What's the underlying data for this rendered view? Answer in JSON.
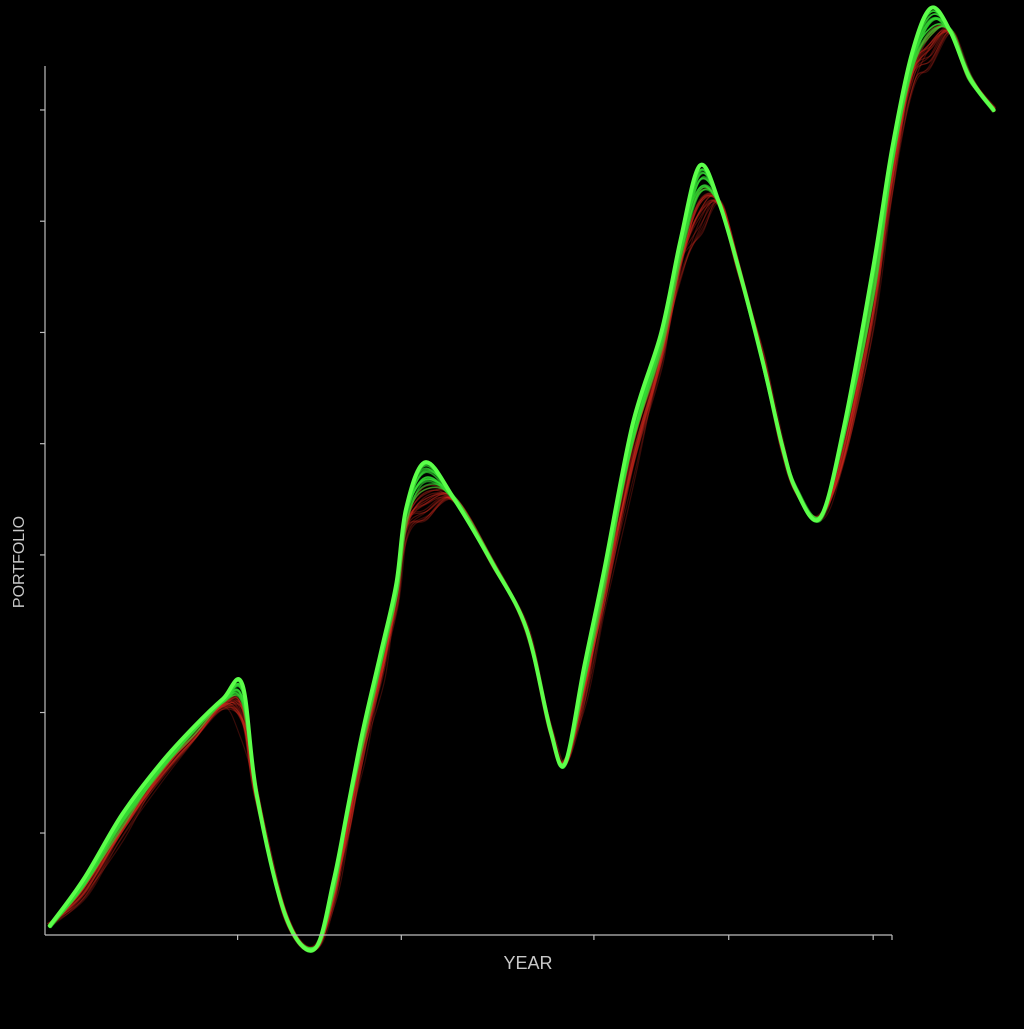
{
  "chart_data": {
    "type": "line",
    "title": "",
    "xlabel": "YEAR",
    "ylabel": "PORTFOLIO",
    "grid": false,
    "legend": "none",
    "xlim": [
      0,
      100
    ],
    "ylim": [
      0,
      100
    ],
    "x_ticks": [
      20,
      37,
      57,
      71,
      86
    ],
    "y_ticks": [
      11,
      24,
      41,
      53,
      65,
      77,
      89
    ],
    "band_count": 36,
    "series": [
      {
        "x": [
          0.5,
          4,
          8,
          12,
          15.5,
          18.5,
          20.5,
          22,
          25,
          28,
          30,
          31.5,
          33,
          35,
          36.5,
          37.5,
          39.5,
          42.5,
          46.5,
          50,
          52.5,
          54,
          56,
          58,
          61,
          64,
          66,
          68,
          70,
          72,
          74.5,
          76.5,
          78,
          80.5,
          83,
          86,
          88,
          90,
          92,
          94,
          96,
          98.5
        ],
        "y": [
          1,
          6,
          13,
          18.5,
          22.5,
          25.5,
          27,
          15,
          2,
          -1.5,
          6,
          14,
          22,
          31,
          38,
          46,
          51,
          47,
          40,
          33,
          22,
          18.5,
          29,
          39,
          55,
          65,
          75,
          83,
          79,
          72,
          62,
          53,
          48,
          45,
          55,
          72,
          85,
          95,
          100,
          97.5,
          92.5,
          89
        ]
      }
    ],
    "colors": {
      "background": "#000000",
      "axis": "#bdbdbd",
      "label": "#c8c8c8",
      "high": "#33dd33",
      "high_bright": "#5cff4a",
      "low": "#d42a1e"
    }
  }
}
